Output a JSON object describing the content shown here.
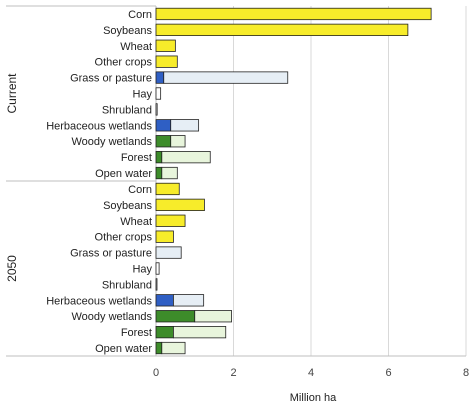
{
  "chart_data": {
    "type": "bar",
    "orientation": "horizontal",
    "stacked": true,
    "xlabel": "Million ha",
    "xlim": [
      0,
      8
    ],
    "xticks": [
      0,
      2,
      4,
      6,
      8
    ],
    "grid": true,
    "legend": "none",
    "groups": [
      {
        "name": "Current",
        "categories": [
          "Corn",
          "Soybeans",
          "Wheat",
          "Other crops",
          "Grass or pasture",
          "Hay",
          "Shrubland",
          "Herbaceous wetlands",
          "Woody wetlands",
          "Forest",
          "Open water"
        ],
        "segments": [
          [
            {
              "value": 7.1,
              "color": "#f7ec2a"
            }
          ],
          [
            {
              "value": 6.5,
              "color": "#f7ec2a"
            }
          ],
          [
            {
              "value": 0.5,
              "color": "#f7ec2a"
            }
          ],
          [
            {
              "value": 0.55,
              "color": "#f7ec2a"
            }
          ],
          [
            {
              "value": 0.2,
              "color": "#2f5fc4"
            },
            {
              "value": 3.2,
              "color": "#e6eef5"
            }
          ],
          [
            {
              "value": 0.12,
              "color": "#ffffff"
            }
          ],
          [
            {
              "value": 0.03,
              "color": "#ffffff"
            }
          ],
          [
            {
              "value": 0.38,
              "color": "#2f5fc4"
            },
            {
              "value": 0.72,
              "color": "#e6eef5"
            }
          ],
          [
            {
              "value": 0.38,
              "color": "#3d8c2a"
            },
            {
              "value": 0.37,
              "color": "#e8f5dc"
            }
          ],
          [
            {
              "value": 0.15,
              "color": "#3d8c2a"
            },
            {
              "value": 1.25,
              "color": "#e8f5dc"
            }
          ],
          [
            {
              "value": 0.15,
              "color": "#3d8c2a"
            },
            {
              "value": 0.4,
              "color": "#e8f5dc"
            }
          ]
        ]
      },
      {
        "name": "2050",
        "categories": [
          "Corn",
          "Soybeans",
          "Wheat",
          "Other crops",
          "Grass or pasture",
          "Hay",
          "Shrubland",
          "Herbaceous wetlands",
          "Woody wetlands",
          "Forest",
          "Open water"
        ],
        "segments": [
          [
            {
              "value": 0.6,
              "color": "#f7ec2a"
            }
          ],
          [
            {
              "value": 1.25,
              "color": "#f7ec2a"
            }
          ],
          [
            {
              "value": 0.75,
              "color": "#f7ec2a"
            }
          ],
          [
            {
              "value": 0.45,
              "color": "#f7ec2a"
            }
          ],
          [
            {
              "value": 0.65,
              "color": "#e6eef5"
            }
          ],
          [
            {
              "value": 0.08,
              "color": "#ffffff"
            }
          ],
          [
            {
              "value": 0.02,
              "color": "#ffffff"
            }
          ],
          [
            {
              "value": 0.45,
              "color": "#2f5fc4"
            },
            {
              "value": 0.78,
              "color": "#e6eef5"
            }
          ],
          [
            {
              "value": 1.0,
              "color": "#3d8c2a"
            },
            {
              "value": 0.95,
              "color": "#e8f5dc"
            }
          ],
          [
            {
              "value": 0.45,
              "color": "#3d8c2a"
            },
            {
              "value": 1.35,
              "color": "#e8f5dc"
            }
          ],
          [
            {
              "value": 0.15,
              "color": "#3d8c2a"
            },
            {
              "value": 0.6,
              "color": "#e8f5dc"
            }
          ]
        ]
      }
    ]
  }
}
